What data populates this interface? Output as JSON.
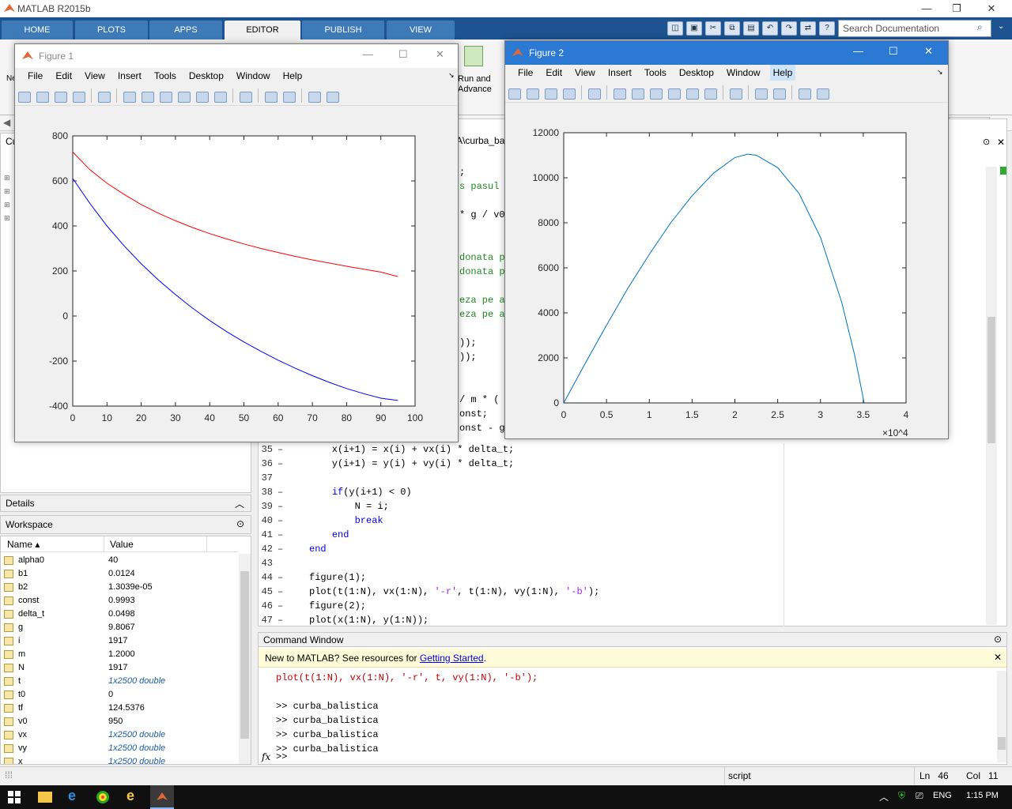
{
  "app": {
    "title": "MATLAB R2015b"
  },
  "ribbon": {
    "tabs": [
      "HOME",
      "PLOTS",
      "APPS",
      "EDITOR",
      "PUBLISH",
      "VIEW"
    ],
    "active": "EDITOR",
    "search_placeholder": "Search Documentation",
    "run_advance": [
      "Run and",
      "Advance"
    ]
  },
  "panels": {
    "current_folder_abbr": "Cu",
    "details": "Details",
    "workspace": "Workspace",
    "ws_columns": [
      "Name",
      "Value"
    ]
  },
  "workspace": [
    {
      "name": "alpha0",
      "value": "40"
    },
    {
      "name": "b1",
      "value": "0.0124"
    },
    {
      "name": "b2",
      "value": "1.3039e-05"
    },
    {
      "name": "const",
      "value": "0.9993"
    },
    {
      "name": "delta_t",
      "value": "0.0498"
    },
    {
      "name": "g",
      "value": "9.8067"
    },
    {
      "name": "i",
      "value": "1917"
    },
    {
      "name": "m",
      "value": "1.2000"
    },
    {
      "name": "N",
      "value": "1917"
    },
    {
      "name": "t",
      "value": "1x2500 double"
    },
    {
      "name": "t0",
      "value": "0"
    },
    {
      "name": "tf",
      "value": "124.5376"
    },
    {
      "name": "v0",
      "value": "950"
    },
    {
      "name": "vx",
      "value": "1x2500 double"
    },
    {
      "name": "vy",
      "value": "1x2500 double"
    },
    {
      "name": "x",
      "value": "1x2500 double"
    }
  ],
  "editor": {
    "path_tail": "A\\curba_ba",
    "partial_lines": [
      ";",
      "s pasul",
      "* g / v0",
      "donata p",
      "donata p",
      "eza pe a",
      "eza pe a",
      "));",
      "));",
      "/ m * (",
      "onst;",
      "onst - g"
    ],
    "lines": [
      {
        "n": "35",
        "dash": "–",
        "code": "    x(i+1) = x(i) + vx(i) * delta_t;"
      },
      {
        "n": "36",
        "dash": "–",
        "code": "    y(i+1) = y(i) + vy(i) * delta_t;"
      },
      {
        "n": "37",
        "dash": "",
        "code": ""
      },
      {
        "n": "38",
        "dash": "–",
        "code": "    if(y(i+1) < 0)"
      },
      {
        "n": "39",
        "dash": "–",
        "code": "        N = i;"
      },
      {
        "n": "40",
        "dash": "–",
        "code": "        break"
      },
      {
        "n": "41",
        "dash": "–",
        "code": "    end"
      },
      {
        "n": "42",
        "dash": "–",
        "code": "end"
      },
      {
        "n": "43",
        "dash": "",
        "code": ""
      },
      {
        "n": "44",
        "dash": "–",
        "code": "figure(1);"
      },
      {
        "n": "45",
        "dash": "–",
        "code": "plot(t(1:N), vx(1:N), '-r', t(1:N), vy(1:N), '-b');"
      },
      {
        "n": "46",
        "dash": "–",
        "code": "figure(2);"
      },
      {
        "n": "47",
        "dash": "–",
        "code": "plot(x(1:N), y(1:N));"
      }
    ]
  },
  "command_window": {
    "title": "Command Window",
    "new_prefix": "New to MATLAB? See resources for ",
    "new_link": "Getting Started",
    "new_suffix": ".",
    "lines": [
      {
        "text": "plot(t(1:N), vx(1:N), '-r', t, vy(1:N), '-b');",
        "err": true
      },
      {
        "text": "",
        "err": false
      },
      {
        "text": ">> curba_balistica",
        "err": false
      },
      {
        "text": ">> curba_balistica",
        "err": false
      },
      {
        "text": ">> curba_balistica",
        "err": false
      },
      {
        "text": ">> curba_balistica",
        "err": false
      }
    ],
    "prompt": ">>",
    "fx": "fx"
  },
  "status": {
    "mode": "script",
    "ln_label": "Ln",
    "ln": "46",
    "col_label": "Col",
    "col": "11"
  },
  "taskbar": {
    "lang": "ENG",
    "time": "1:15 PM"
  },
  "figures": {
    "menu": [
      "File",
      "Edit",
      "View",
      "Insert",
      "Tools",
      "Desktop",
      "Window",
      "Help"
    ],
    "fig1_title": "Figure 1",
    "fig2_title": "Figure 2"
  },
  "chart_data": [
    {
      "type": "line",
      "window": "Figure 1",
      "xlim": [
        0,
        100
      ],
      "ylim": [
        -400,
        800
      ],
      "xticks": [
        0,
        10,
        20,
        30,
        40,
        50,
        60,
        70,
        80,
        90,
        100
      ],
      "yticks": [
        -400,
        -200,
        0,
        200,
        400,
        600,
        800
      ],
      "series": [
        {
          "color": "#ff0000",
          "x": [
            0,
            5,
            10,
            15,
            20,
            25,
            30,
            35,
            40,
            45,
            50,
            55,
            60,
            65,
            70,
            75,
            80,
            85,
            90,
            95
          ],
          "y": [
            728,
            650,
            590,
            540,
            495,
            457,
            423,
            393,
            366,
            342,
            320,
            300,
            282,
            265,
            249,
            235,
            221,
            208,
            195,
            175
          ]
        },
        {
          "color": "#0000ff",
          "x": [
            0,
            5,
            10,
            15,
            20,
            25,
            30,
            35,
            40,
            45,
            50,
            55,
            60,
            65,
            70,
            75,
            80,
            85,
            90,
            95
          ],
          "y": [
            611,
            500,
            400,
            312,
            232,
            160,
            95,
            35,
            -20,
            -70,
            -115,
            -157,
            -196,
            -232,
            -265,
            -295,
            -322,
            -345,
            -365,
            -375
          ]
        }
      ]
    },
    {
      "type": "line",
      "window": "Figure 2",
      "xlim": [
        0,
        4
      ],
      "ylim": [
        0,
        12000
      ],
      "x_multiplier": "×10^4",
      "xticks": [
        0,
        0.5,
        1,
        1.5,
        2,
        2.5,
        3,
        3.5,
        4
      ],
      "yticks": [
        0,
        2000,
        4000,
        6000,
        8000,
        10000,
        12000
      ],
      "series": [
        {
          "color": "#0072bd",
          "x": [
            0,
            0.25,
            0.5,
            0.75,
            1,
            1.25,
            1.5,
            1.75,
            2,
            2.15,
            2.25,
            2.5,
            2.75,
            3,
            3.25,
            3.4,
            3.51
          ],
          "y": [
            0,
            1750,
            3450,
            5100,
            6600,
            8000,
            9200,
            10200,
            10900,
            11050,
            11000,
            10450,
            9300,
            7350,
            4450,
            2100,
            0
          ]
        }
      ]
    }
  ]
}
